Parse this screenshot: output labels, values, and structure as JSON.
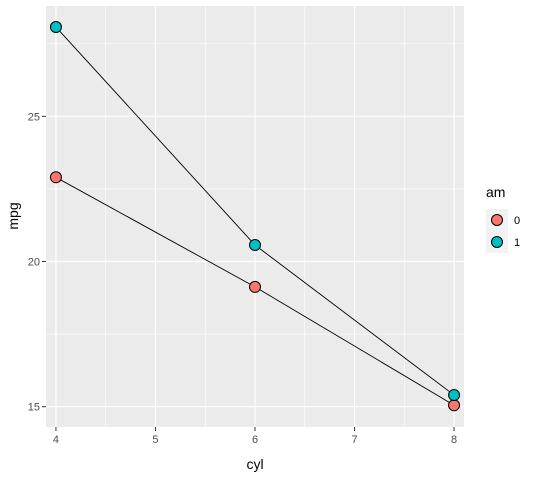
{
  "chart_data": {
    "type": "line",
    "xlabel": "cyl",
    "ylabel": "mpg",
    "xlim": [
      3.9,
      8.1
    ],
    "ylim": [
      14.3,
      28.8
    ],
    "x_ticks": [
      4,
      5,
      6,
      7,
      8
    ],
    "y_ticks": [
      15,
      20,
      25
    ],
    "x_tick_labels": [
      "4",
      "5",
      "6",
      "7",
      "8"
    ],
    "y_tick_labels": [
      "15",
      "20",
      "25"
    ],
    "grid": true,
    "legend": {
      "title": "am",
      "position": "right"
    },
    "series": [
      {
        "name": "0",
        "color": "#F8766D",
        "x": [
          4,
          6,
          8
        ],
        "values": [
          22.9,
          19.125,
          15.05
        ]
      },
      {
        "name": "1",
        "color": "#00BFC4",
        "x": [
          4,
          6,
          8
        ],
        "values": [
          28.075,
          20.567,
          15.4
        ]
      }
    ]
  }
}
